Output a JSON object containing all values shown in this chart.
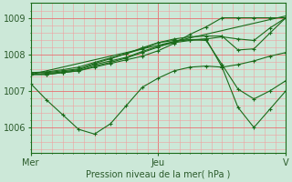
{
  "background_color": "#cce8d8",
  "plot_bg_color": "#cce8d8",
  "grid_color_major": "#e87070",
  "grid_color_minor": "#f0a0a0",
  "line_color": "#1a6b1a",
  "xlabel": "Pression niveau de la mer( hPa )",
  "xlabel_color": "#2a5a2a",
  "tick_label_color": "#2a5a2a",
  "xtick_labels": [
    "Mer",
    "Jeu",
    "V"
  ],
  "xtick_positions": [
    0,
    24,
    48
  ],
  "ylim": [
    1005.3,
    1009.4
  ],
  "yticks": [
    1006,
    1007,
    1008,
    1009
  ],
  "series": [
    {
      "x": [
        0,
        48
      ],
      "y": [
        1007.45,
        1009.05
      ]
    },
    {
      "x": [
        0,
        3,
        6,
        9,
        12,
        15,
        18,
        21,
        24,
        27,
        30,
        33,
        36,
        39,
        42,
        45,
        48
      ],
      "y": [
        1007.45,
        1007.45,
        1007.5,
        1007.55,
        1007.65,
        1007.75,
        1007.85,
        1007.95,
        1008.1,
        1008.3,
        1008.55,
        1008.75,
        1009.0,
        1009.0,
        1009.0,
        1009.0,
        1009.0
      ]
    },
    {
      "x": [
        0,
        3,
        6,
        9,
        12,
        15,
        18,
        21,
        24,
        27,
        30,
        33,
        36,
        39,
        42,
        45,
        48
      ],
      "y": [
        1007.2,
        1006.75,
        1006.35,
        1005.95,
        1005.82,
        1006.1,
        1006.6,
        1007.1,
        1007.35,
        1007.55,
        1007.65,
        1007.68,
        1007.65,
        1007.72,
        1007.82,
        1007.95,
        1008.05
      ]
    },
    {
      "x": [
        0,
        3,
        6,
        9,
        12,
        15,
        18,
        21,
        24,
        27,
        30,
        33,
        36,
        39,
        42,
        45,
        48
      ],
      "y": [
        1007.45,
        1007.45,
        1007.5,
        1007.55,
        1007.68,
        1007.78,
        1007.9,
        1008.05,
        1008.2,
        1008.35,
        1008.4,
        1008.42,
        1007.65,
        1006.55,
        1006.0,
        1006.5,
        1007.0
      ]
    },
    {
      "x": [
        0,
        3,
        6,
        9,
        12,
        15,
        18,
        21,
        24,
        27,
        30,
        33,
        36,
        39,
        42,
        45,
        48
      ],
      "y": [
        1007.45,
        1007.48,
        1007.52,
        1007.58,
        1007.72,
        1007.82,
        1007.92,
        1008.08,
        1008.22,
        1008.32,
        1008.38,
        1008.42,
        1008.48,
        1008.42,
        1008.38,
        1008.72,
        1009.0
      ]
    },
    {
      "x": [
        0,
        3,
        6,
        9,
        12,
        15,
        18,
        21,
        24,
        27,
        30,
        33,
        36,
        39,
        42,
        45,
        48
      ],
      "y": [
        1007.5,
        1007.5,
        1007.55,
        1007.6,
        1007.75,
        1007.88,
        1008.02,
        1008.15,
        1008.32,
        1008.38,
        1008.4,
        1008.38,
        1007.72,
        1007.05,
        1006.78,
        1007.0,
        1007.28
      ]
    },
    {
      "x": [
        0,
        3,
        6,
        9,
        12,
        15,
        18,
        21,
        24,
        27,
        30,
        33,
        36,
        39,
        42,
        45,
        48
      ],
      "y": [
        1007.5,
        1007.52,
        1007.58,
        1007.65,
        1007.78,
        1007.9,
        1008.02,
        1008.18,
        1008.32,
        1008.42,
        1008.48,
        1008.5,
        1008.5,
        1008.12,
        1008.15,
        1008.58,
        1009.0
      ]
    }
  ]
}
